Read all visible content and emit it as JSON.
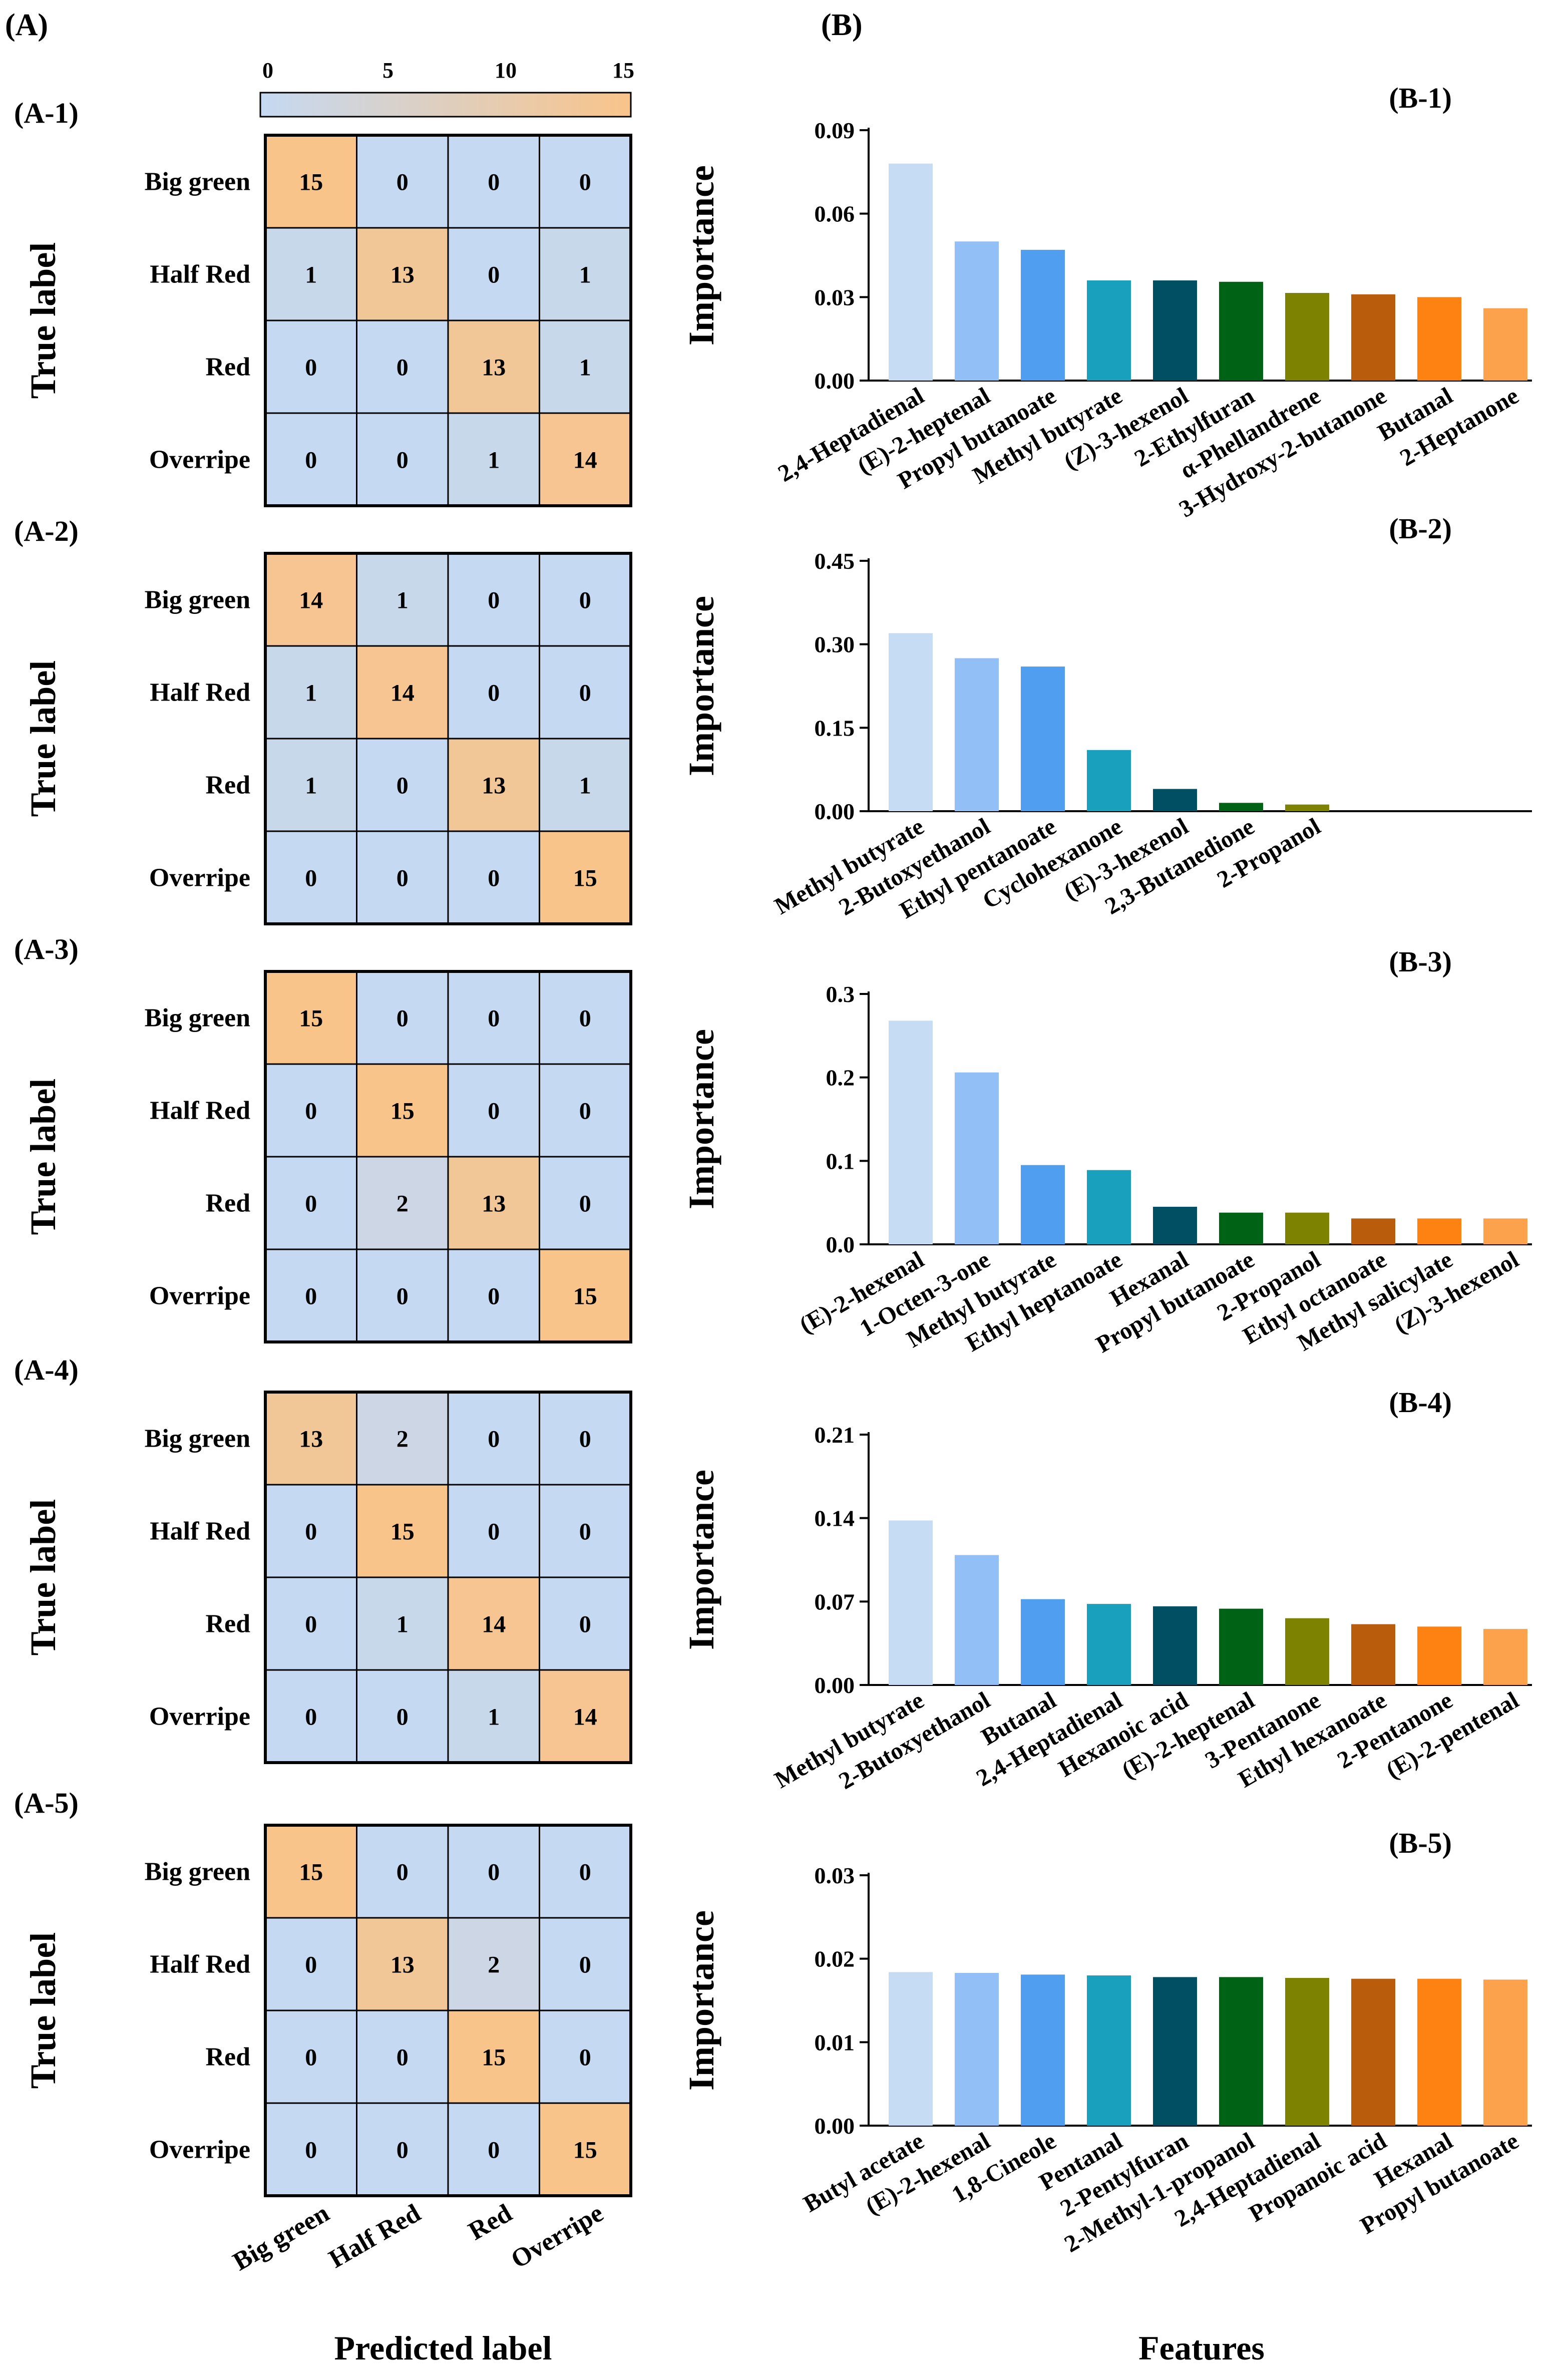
{
  "panels": {
    "A": "(A)",
    "B": "(B)"
  },
  "colorbar": {
    "ticks": [
      "0",
      "5",
      "10",
      "15"
    ],
    "min": 0,
    "max": 15,
    "low_color": "#c5d9f2",
    "high_color": "#f9c48a"
  },
  "axis_titles": {
    "true_label": "True label",
    "predicted_label": "Predicted label",
    "features": "Features",
    "importance": "Importance"
  },
  "chart_data": [
    {
      "type": "heatmap",
      "label": "(A-1)",
      "rows": [
        "Big green",
        "Half Red",
        "Red",
        "Overripe"
      ],
      "cols": [
        "Big green",
        "Half Red",
        "Red",
        "Overripe"
      ],
      "values": [
        [
          15,
          0,
          0,
          0
        ],
        [
          1,
          13,
          0,
          1
        ],
        [
          0,
          0,
          13,
          1
        ],
        [
          0,
          0,
          1,
          14
        ]
      ]
    },
    {
      "type": "heatmap",
      "label": "(A-2)",
      "rows": [
        "Big green",
        "Half Red",
        "Red",
        "Overripe"
      ],
      "cols": [
        "Big green",
        "Half Red",
        "Red",
        "Overripe"
      ],
      "values": [
        [
          14,
          1,
          0,
          0
        ],
        [
          1,
          14,
          0,
          0
        ],
        [
          1,
          0,
          13,
          1
        ],
        [
          0,
          0,
          0,
          15
        ]
      ]
    },
    {
      "type": "heatmap",
      "label": "(A-3)",
      "rows": [
        "Big green",
        "Half Red",
        "Red",
        "Overripe"
      ],
      "cols": [
        "Big green",
        "Half Red",
        "Red",
        "Overripe"
      ],
      "values": [
        [
          15,
          0,
          0,
          0
        ],
        [
          0,
          15,
          0,
          0
        ],
        [
          0,
          2,
          13,
          0
        ],
        [
          0,
          0,
          0,
          15
        ]
      ]
    },
    {
      "type": "heatmap",
      "label": "(A-4)",
      "rows": [
        "Big green",
        "Half Red",
        "Red",
        "Overripe"
      ],
      "cols": [
        "Big green",
        "Half Red",
        "Red",
        "Overripe"
      ],
      "values": [
        [
          13,
          2,
          0,
          0
        ],
        [
          0,
          15,
          0,
          0
        ],
        [
          0,
          1,
          14,
          0
        ],
        [
          0,
          0,
          1,
          14
        ]
      ]
    },
    {
      "type": "heatmap",
      "label": "(A-5)",
      "rows": [
        "Big green",
        "Half Red",
        "Red",
        "Overripe"
      ],
      "cols": [
        "Big green",
        "Half Red",
        "Red",
        "Overripe"
      ],
      "values": [
        [
          15,
          0,
          0,
          0
        ],
        [
          0,
          13,
          2,
          0
        ],
        [
          0,
          0,
          15,
          0
        ],
        [
          0,
          0,
          0,
          15
        ]
      ]
    },
    {
      "type": "bar",
      "label": "(B-1)",
      "ylabel": "Importance",
      "ylim": [
        0,
        0.09
      ],
      "yticks": [
        "0.00",
        "0.03",
        "0.06",
        "0.09"
      ],
      "categories": [
        "2,4-Heptadienal",
        "(E)-2-heptenal",
        "Propyl butanoate",
        "Methyl butyrate",
        "(Z)-3-hexenol",
        "2-Ethylfuran",
        "α-Phellandrene",
        "3-Hydroxy-2-butanone",
        "Butanal",
        "2-Heptanone"
      ],
      "values": [
        0.078,
        0.05,
        0.047,
        0.036,
        0.036,
        0.0355,
        0.0315,
        0.031,
        0.03,
        0.026
      ]
    },
    {
      "type": "bar",
      "label": "(B-2)",
      "ylabel": "Importance",
      "ylim": [
        0,
        0.45
      ],
      "yticks": [
        "0.00",
        "0.15",
        "0.30",
        "0.45"
      ],
      "categories": [
        "Methyl butyrate",
        "2-Butoxyethanol",
        "Ethyl pentanoate",
        "Cyclohexanone",
        "(E)-3-hexenol",
        "2,3-Butanedione",
        "2-Propanol"
      ],
      "values": [
        0.32,
        0.275,
        0.26,
        0.11,
        0.04,
        0.015,
        0.012
      ]
    },
    {
      "type": "bar",
      "label": "(B-3)",
      "ylabel": "Importance",
      "ylim": [
        0,
        0.3
      ],
      "yticks": [
        "0.0",
        "0.1",
        "0.2",
        "0.3"
      ],
      "categories": [
        "(E)-2-hexenal",
        "1-Octen-3-one",
        "Methyl butyrate",
        "Ethyl heptanoate",
        "Hexanal",
        "Propyl butanoate",
        "2-Propanol",
        "Ethyl octanoate",
        "Methyl salicylate",
        "(Z)-3-hexenol"
      ],
      "values": [
        0.268,
        0.206,
        0.095,
        0.089,
        0.045,
        0.038,
        0.038,
        0.031,
        0.031,
        0.031
      ]
    },
    {
      "type": "bar",
      "label": "(B-4)",
      "ylabel": "Importance",
      "ylim": [
        0,
        0.21
      ],
      "yticks": [
        "0.00",
        "0.07",
        "0.14",
        "0.21"
      ],
      "categories": [
        "Methyl butyrate",
        "2-Butoxyethanol",
        "Butanal",
        "2,4-Heptadienal",
        "Hexanoic acid",
        "(E)-2-heptenal",
        "3-Pentanone",
        "Ethyl hexanoate",
        "2-Pentanone",
        "(E)-2-pentenal"
      ],
      "values": [
        0.138,
        0.109,
        0.072,
        0.068,
        0.066,
        0.064,
        0.056,
        0.051,
        0.049,
        0.047
      ]
    },
    {
      "type": "bar",
      "label": "(B-5)",
      "ylabel": "Importance",
      "ylim": [
        0,
        0.03
      ],
      "yticks": [
        "0.00",
        "0.01",
        "0.02",
        "0.03"
      ],
      "categories": [
        "Butyl acetate",
        "(E)-2-hexenal",
        "1,8-Cineole",
        "Pentanal",
        "2-Pentylfuran",
        "2-Methyl-1-propanol",
        "2,4-Heptadienal",
        "Propanoic acid",
        "Hexanal",
        "Propyl butanoate"
      ],
      "values": [
        0.0184,
        0.0183,
        0.0181,
        0.018,
        0.0178,
        0.0178,
        0.0177,
        0.0176,
        0.0176,
        0.0175
      ]
    }
  ],
  "bar_colors": [
    "#c6dcf5",
    "#92bff5",
    "#4f9ef0",
    "#18a0bd",
    "#004f63",
    "#006215",
    "#7d8200",
    "#b95c0b",
    "#fe8212",
    "#fda24c"
  ]
}
